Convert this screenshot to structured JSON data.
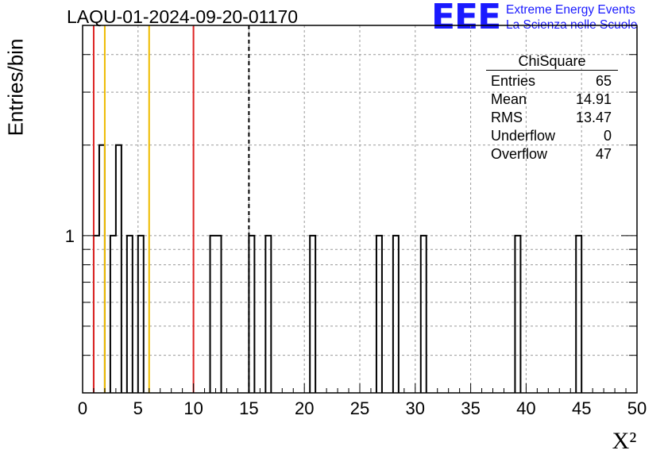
{
  "title": "LAQU-01-2024-09-20-01170",
  "logo": {
    "mark": "EEE",
    "line1": "Extreme Energy Events",
    "line2": "La Scienza nelle Scuole",
    "color": "#1a1aff"
  },
  "stats": {
    "name": "ChiSquare",
    "rows": [
      {
        "label": "Entries",
        "value": "65"
      },
      {
        "label": "Mean",
        "value": "14.91"
      },
      {
        "label": "RMS",
        "value": "13.47"
      },
      {
        "label": "Underflow",
        "value": "0"
      },
      {
        "label": "Overflow",
        "value": "47"
      }
    ]
  },
  "chart_data": {
    "type": "bar",
    "histogram": true,
    "title": "LAQU-01-2024-09-20-01170",
    "xlabel": "X²",
    "ylabel": "Entries/bin",
    "xlim": [
      0,
      50
    ],
    "ylim": [
      0.3,
      5
    ],
    "ylog": true,
    "bin_width": 0.5,
    "x_ticks": [
      0,
      5,
      10,
      15,
      20,
      25,
      30,
      35,
      40,
      45,
      50
    ],
    "y_tick_labels": [
      {
        "value": 1,
        "label": "1"
      }
    ],
    "grid": true,
    "bins": [
      {
        "x": 1.0,
        "y": 1
      },
      {
        "x": 1.5,
        "y": 2
      },
      {
        "x": 2.5,
        "y": 1
      },
      {
        "x": 3.0,
        "y": 2
      },
      {
        "x": 4.0,
        "y": 1
      },
      {
        "x": 5.0,
        "y": 1
      },
      {
        "x": 11.5,
        "y": 1
      },
      {
        "x": 12.0,
        "y": 1
      },
      {
        "x": 15.0,
        "y": 1
      },
      {
        "x": 16.5,
        "y": 1
      },
      {
        "x": 20.5,
        "y": 1
      },
      {
        "x": 26.5,
        "y": 1
      },
      {
        "x": 28.0,
        "y": 1
      },
      {
        "x": 30.5,
        "y": 1
      },
      {
        "x": 39.0,
        "y": 1
      },
      {
        "x": 44.5,
        "y": 1
      }
    ],
    "vertical_lines": [
      {
        "x": 1,
        "color": "#dd2222",
        "style": "solid"
      },
      {
        "x": 2,
        "color": "#eebb00",
        "style": "solid"
      },
      {
        "x": 6,
        "color": "#eebb00",
        "style": "solid"
      },
      {
        "x": 10,
        "color": "#dd2222",
        "style": "solid"
      },
      {
        "x": 15,
        "color": "#000000",
        "style": "dashed"
      }
    ]
  }
}
